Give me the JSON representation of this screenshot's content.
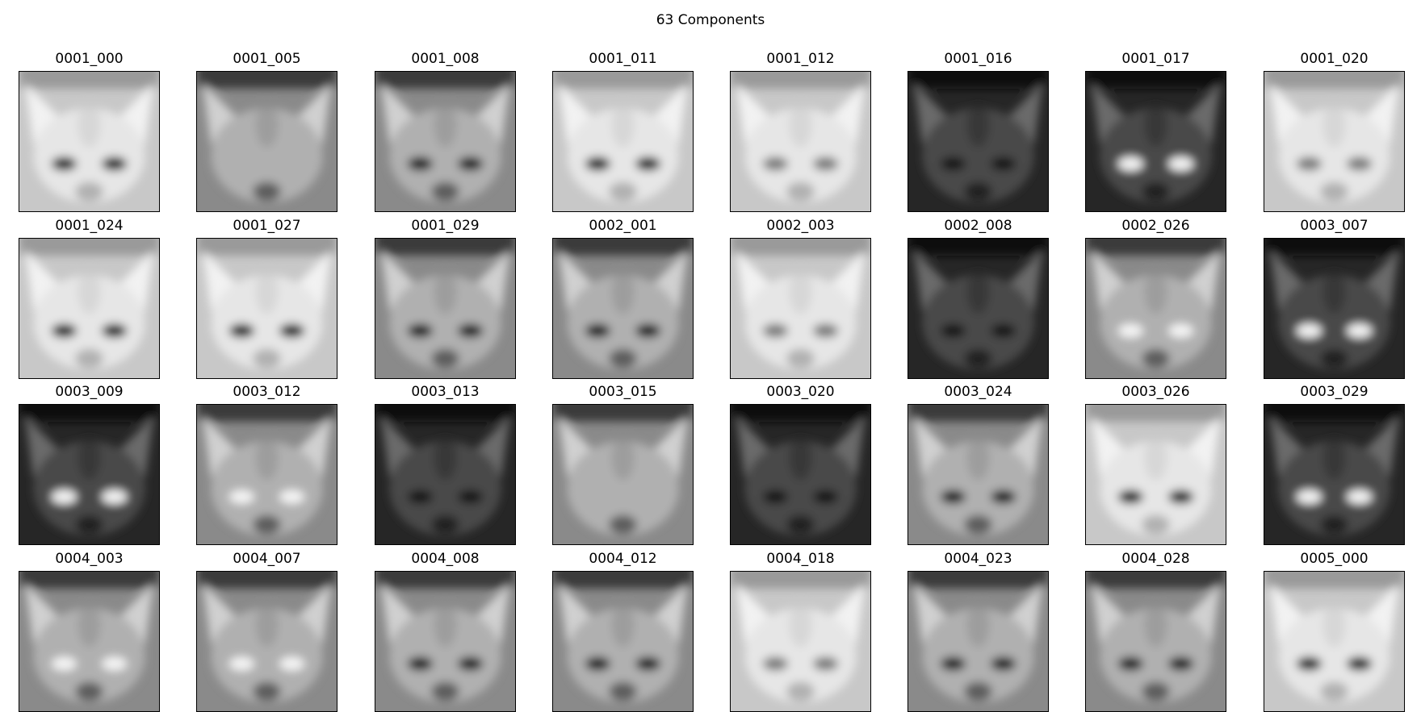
{
  "figure": {
    "title": "63 Components"
  },
  "components": [
    {
      "label": "0001_000",
      "tone": "light",
      "eyes": "dark"
    },
    {
      "label": "0001_005",
      "tone": "mid",
      "eyes": "none"
    },
    {
      "label": "0001_008",
      "tone": "mid",
      "eyes": "dark"
    },
    {
      "label": "0001_011",
      "tone": "light",
      "eyes": "dark"
    },
    {
      "label": "0001_012",
      "tone": "light",
      "eyes": "faint"
    },
    {
      "label": "0001_016",
      "tone": "dark",
      "eyes": "dark"
    },
    {
      "label": "0001_017",
      "tone": "dark",
      "eyes": "light"
    },
    {
      "label": "0001_020",
      "tone": "light",
      "eyes": "faint"
    },
    {
      "label": "0001_024",
      "tone": "light",
      "eyes": "dark"
    },
    {
      "label": "0001_027",
      "tone": "light",
      "eyes": "dark"
    },
    {
      "label": "0001_029",
      "tone": "mid",
      "eyes": "dark"
    },
    {
      "label": "0002_001",
      "tone": "mid",
      "eyes": "dark"
    },
    {
      "label": "0002_003",
      "tone": "light",
      "eyes": "faint"
    },
    {
      "label": "0002_008",
      "tone": "dark",
      "eyes": "dark"
    },
    {
      "label": "0002_026",
      "tone": "mid",
      "eyes": "light"
    },
    {
      "label": "0003_007",
      "tone": "dark",
      "eyes": "light"
    },
    {
      "label": "0003_009",
      "tone": "dark",
      "eyes": "light"
    },
    {
      "label": "0003_012",
      "tone": "mid",
      "eyes": "light"
    },
    {
      "label": "0003_013",
      "tone": "dark",
      "eyes": "dark"
    },
    {
      "label": "0003_015",
      "tone": "mid",
      "eyes": "none"
    },
    {
      "label": "0003_020",
      "tone": "dark",
      "eyes": "dark"
    },
    {
      "label": "0003_024",
      "tone": "mid",
      "eyes": "dark"
    },
    {
      "label": "0003_026",
      "tone": "light",
      "eyes": "dark"
    },
    {
      "label": "0003_029",
      "tone": "dark",
      "eyes": "light"
    },
    {
      "label": "0004_003",
      "tone": "mid",
      "eyes": "light"
    },
    {
      "label": "0004_007",
      "tone": "mid",
      "eyes": "light"
    },
    {
      "label": "0004_008",
      "tone": "mid",
      "eyes": "dark"
    },
    {
      "label": "0004_012",
      "tone": "mid",
      "eyes": "dark"
    },
    {
      "label": "0004_018",
      "tone": "light",
      "eyes": "faint"
    },
    {
      "label": "0004_023",
      "tone": "mid",
      "eyes": "dark"
    },
    {
      "label": "0004_028",
      "tone": "mid",
      "eyes": "dark"
    },
    {
      "label": "0005_000",
      "tone": "light",
      "eyes": "dark"
    }
  ]
}
